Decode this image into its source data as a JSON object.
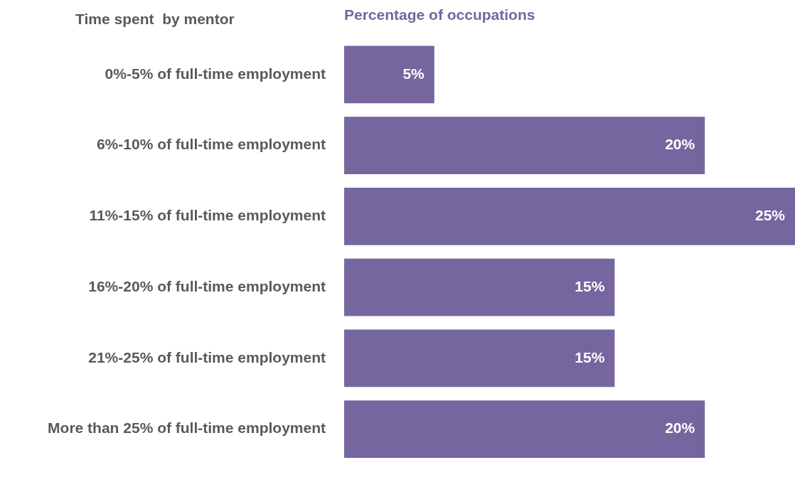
{
  "chart_data": {
    "type": "bar",
    "orientation": "horizontal",
    "title": "Percentage of occupations",
    "ylabel": "Time spent  by mentor",
    "categories": [
      "0%-5% of full-time employment",
      "6%-10% of full-time employment",
      "11%-15% of full-time employment",
      "16%-20% of full-time employment",
      "21%-25% of full-time employment",
      "More than 25% of full-time employment"
    ],
    "values": [
      5,
      20,
      25,
      15,
      15,
      20
    ],
    "value_labels": [
      "5%",
      "20%",
      "25%",
      "15%",
      "15%",
      "20%"
    ],
    "color": "#75669f",
    "xlim": [
      0,
      25
    ],
    "tick_labels": "y",
    "legend": false
  }
}
